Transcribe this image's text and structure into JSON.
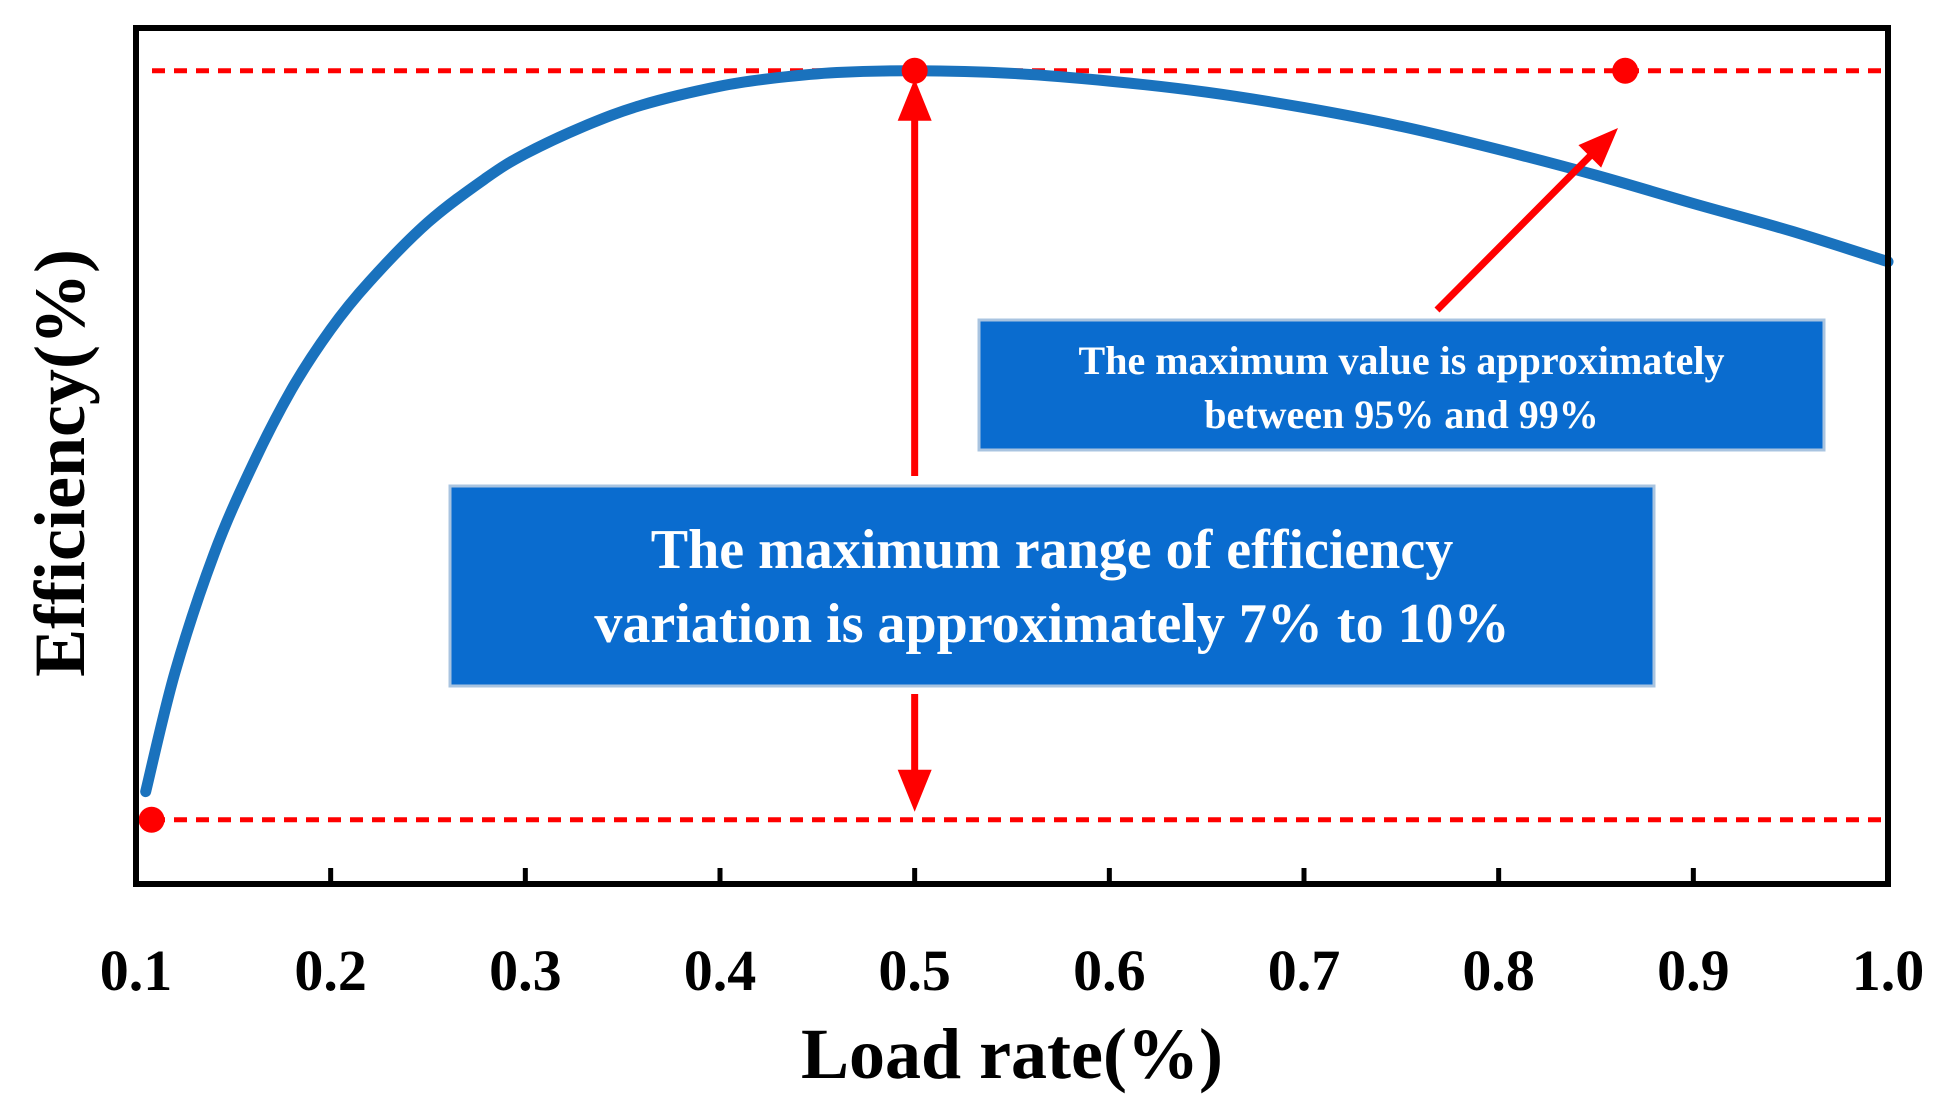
{
  "colors": {
    "curve": "#1a72bd",
    "annotation": "#ff0000",
    "box_fill": "#0a6ccf",
    "box_border": "#a9c4e0",
    "axis": "#000000"
  },
  "chart_data": {
    "type": "line",
    "title": "",
    "xlabel": "Load rate(%)",
    "ylabel": "Efficiency(%)",
    "xlim": [
      0.1,
      1.0
    ],
    "ylim": [
      0.0,
      1.0
    ],
    "y_tick_labels_shown": false,
    "x_ticks": [
      0.1,
      0.2,
      0.3,
      0.4,
      0.5,
      0.6,
      0.7,
      0.8,
      0.9,
      1.0
    ],
    "x_tick_labels": [
      "0.1",
      "0.2",
      "0.3",
      "0.4",
      "0.5",
      "0.6",
      "0.7",
      "0.8",
      "0.9",
      "1.0"
    ],
    "grid": false,
    "series": [
      {
        "name": "Efficiency",
        "x": [
          0.105,
          0.12,
          0.14,
          0.16,
          0.18,
          0.2,
          0.22,
          0.25,
          0.28,
          0.3,
          0.33,
          0.36,
          0.4,
          0.43,
          0.46,
          0.5,
          0.55,
          0.6,
          0.65,
          0.7,
          0.75,
          0.8,
          0.85,
          0.9,
          0.95,
          1.0
        ],
        "y": [
          0.108,
          0.247,
          0.385,
          0.49,
          0.578,
          0.648,
          0.704,
          0.773,
          0.825,
          0.853,
          0.885,
          0.91,
          0.932,
          0.942,
          0.948,
          0.95,
          0.947,
          0.938,
          0.925,
          0.907,
          0.885,
          0.858,
          0.828,
          0.795,
          0.763,
          0.727
        ]
      }
    ],
    "reference_lines": [
      {
        "name": "max-efficiency-line",
        "y": 0.95,
        "style": "dashed"
      },
      {
        "name": "min-efficiency-line",
        "y": 0.075,
        "style": "dashed"
      }
    ],
    "points": [
      {
        "name": "min-point",
        "x": 0.108,
        "y": 0.075
      },
      {
        "name": "max-point",
        "x": 0.5,
        "y": 0.95
      },
      {
        "name": "max-line-point",
        "x": 0.865,
        "y": 0.95
      }
    ],
    "annotations": [
      {
        "name": "range-annotation",
        "lines": [
          "The maximum range of efficiency",
          "variation is approximately 7% to 10%"
        ]
      },
      {
        "name": "max-value-annotation",
        "lines": [
          "The maximum value is approximately",
          "between 95% and 99%"
        ]
      }
    ]
  }
}
